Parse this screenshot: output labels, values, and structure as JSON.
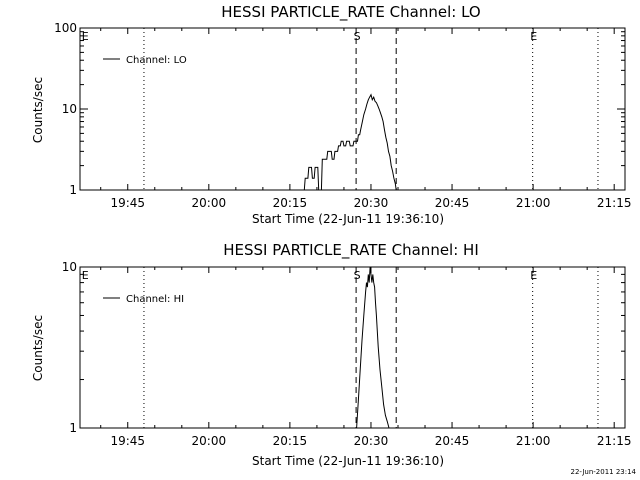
{
  "timestamp": "22-Jun-2011 23:14",
  "chart_data": [
    {
      "type": "line",
      "title": "HESSI PARTICLE_RATE Channel: LO",
      "xlabel": "Start Time (22-Jun-11 19:36:10)",
      "ylabel": "Counts/sec",
      "yscale": "log",
      "ylim": [
        1,
        100
      ],
      "xlim": [
        "19:36:10",
        "21:17:00"
      ],
      "x_tick_labels": [
        "19:45",
        "20:00",
        "20:15",
        "20:30",
        "20:45",
        "21:00",
        "21:15"
      ],
      "y_tick_labels": [
        "1",
        "10",
        "100"
      ],
      "legend": {
        "entries": [
          "Channel: LO"
        ],
        "position": "top-left"
      },
      "markers": [
        {
          "label": "E",
          "time": "19:36:30",
          "style": "none"
        },
        {
          "label": "",
          "time": "19:48:00",
          "style": "dotted"
        },
        {
          "label": "S",
          "time": "20:27:15",
          "style": "dashed"
        },
        {
          "label": "",
          "time": "20:34:40",
          "style": "dashed"
        },
        {
          "label": "E",
          "time": "20:59:55",
          "style": "dotted"
        },
        {
          "label": "",
          "time": "21:12:00",
          "style": "dotted"
        }
      ],
      "series": [
        {
          "name": "Channel: LO",
          "x": [
            "20:17:40",
            "20:17:50",
            "20:18:20",
            "20:18:30",
            "20:19:00",
            "20:19:10",
            "20:19:30",
            "20:19:40",
            "20:20:10",
            "20:20:20",
            "20:20:50",
            "20:21:00",
            "20:21:50",
            "20:22:00",
            "20:22:40",
            "20:22:50",
            "20:23:10",
            "20:23:20",
            "20:23:50",
            "20:24:00",
            "20:24:20",
            "20:24:30",
            "20:24:50",
            "20:25:00",
            "20:25:20",
            "20:25:30",
            "20:26:00",
            "20:26:10",
            "20:26:40",
            "20:26:50",
            "20:27:30",
            "20:27:40",
            "20:27:55",
            "20:28:05",
            "20:28:25",
            "20:28:40",
            "20:29:00",
            "20:29:15",
            "20:29:30",
            "20:29:45",
            "20:30:00",
            "20:30:15",
            "20:30:30",
            "20:30:45",
            "20:31:00",
            "20:31:15",
            "20:31:30",
            "20:31:45",
            "20:32:00",
            "20:32:15",
            "20:32:30",
            "20:32:45",
            "20:33:00",
            "20:33:15",
            "20:33:30",
            "20:33:45",
            "20:34:00",
            "20:34:15",
            "20:34:30",
            "20:34:40"
          ],
          "values": [
            1,
            1.4,
            1.4,
            1.9,
            1.9,
            1.4,
            1.4,
            1.9,
            1.9,
            1,
            1,
            2.4,
            2.4,
            3,
            3,
            2.4,
            2.4,
            3,
            3,
            3.5,
            3.5,
            4,
            4,
            3.5,
            3.5,
            4,
            4,
            3.5,
            3.5,
            4,
            4,
            4.8,
            4.8,
            5.5,
            7,
            8.5,
            10,
            11.5,
            13,
            14,
            15,
            13,
            14,
            12.5,
            12,
            11,
            10,
            9,
            8,
            7,
            5.5,
            4.5,
            3.8,
            3,
            2.6,
            2,
            1.7,
            1.4,
            1.2,
            1
          ]
        }
      ]
    },
    {
      "type": "line",
      "title": "HESSI PARTICLE_RATE Channel: HI",
      "xlabel": "Start Time (22-Jun-11 19:36:10)",
      "ylabel": "Counts/sec",
      "yscale": "log",
      "ylim": [
        1,
        10
      ],
      "xlim": [
        "19:36:10",
        "21:17:00"
      ],
      "x_tick_labels": [
        "19:45",
        "20:00",
        "20:15",
        "20:30",
        "20:45",
        "21:00",
        "21:15"
      ],
      "y_tick_labels": [
        "1",
        "10"
      ],
      "legend": {
        "entries": [
          "Channel: HI"
        ],
        "position": "top-left"
      },
      "markers": [
        {
          "label": "E",
          "time": "19:36:30",
          "style": "none"
        },
        {
          "label": "",
          "time": "19:48:00",
          "style": "dotted"
        },
        {
          "label": "S",
          "time": "20:27:15",
          "style": "dashed"
        },
        {
          "label": "",
          "time": "20:34:40",
          "style": "dashed"
        },
        {
          "label": "E",
          "time": "20:59:55",
          "style": "dotted"
        },
        {
          "label": "",
          "time": "21:12:00",
          "style": "dotted"
        }
      ],
      "series": [
        {
          "name": "Channel: HI",
          "x": [
            "20:27:20",
            "20:27:40",
            "20:28:00",
            "20:28:20",
            "20:28:40",
            "20:29:00",
            "20:29:10",
            "20:29:20",
            "20:29:30",
            "20:29:40",
            "20:29:50",
            "20:30:00",
            "20:30:10",
            "20:30:20",
            "20:30:30",
            "20:30:40",
            "20:30:50",
            "20:31:00",
            "20:31:10",
            "20:31:20",
            "20:31:40",
            "20:32:00",
            "20:32:20",
            "20:32:40",
            "20:33:00",
            "20:33:20"
          ],
          "values": [
            1,
            1.5,
            2.3,
            3.5,
            5,
            7,
            8,
            7.5,
            9,
            8,
            10,
            9,
            8,
            9,
            8,
            7.5,
            6,
            5,
            4,
            3.2,
            2.3,
            1.8,
            1.4,
            1.2,
            1.1,
            1
          ]
        }
      ]
    }
  ]
}
